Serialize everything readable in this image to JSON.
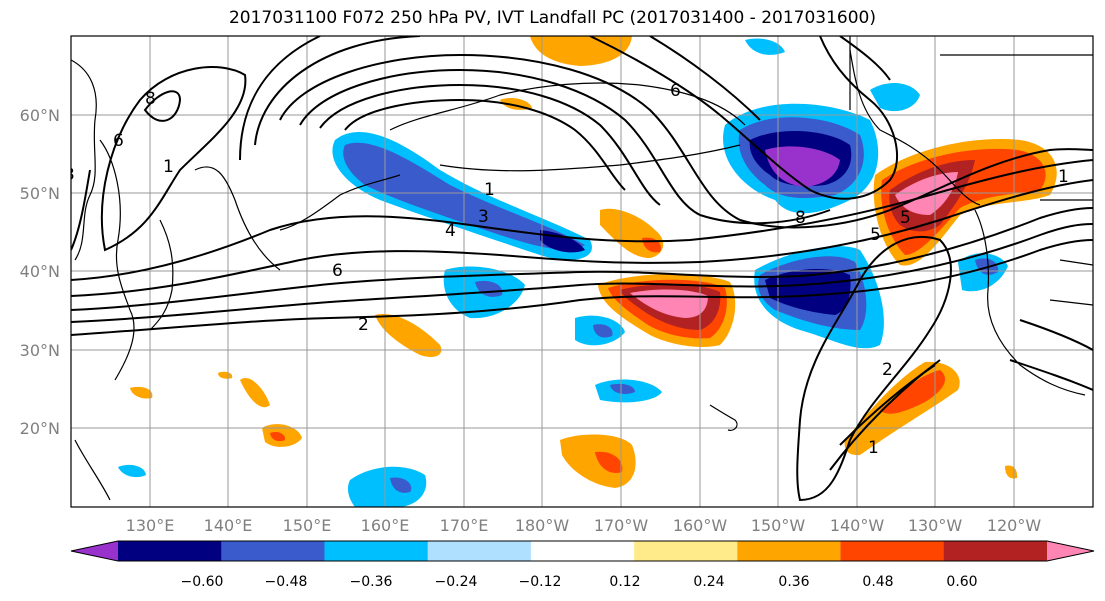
{
  "title": "2017031100 F072 250 hPa PV, IVT Landfall PC (2017031400 - 2017031600)",
  "lat_ticks": [
    "60°N",
    "50°N",
    "40°N",
    "30°N",
    "20°N"
  ],
  "lon_ticks": [
    "130°E",
    "140°E",
    "150°E",
    "160°E",
    "170°E",
    "180°W",
    "170°W",
    "160°W",
    "150°W",
    "140°W",
    "130°W",
    "120°W"
  ],
  "colorbar": {
    "colors": [
      "#9932cc",
      "#000080",
      "#3a5bcc",
      "#00bfff",
      "#b0e0ff",
      "#ffffff",
      "#ffeb8a",
      "#ffa500",
      "#ff4500",
      "#b22222",
      "#ff85b4"
    ],
    "tick_labels": [
      "−0.60",
      "−0.48",
      "−0.36",
      "−0.24",
      "−0.12",
      "0.12",
      "0.24",
      "0.36",
      "0.48",
      "0.60"
    ]
  },
  "contour_labels": [
    "8",
    "6",
    "1",
    "3",
    "4",
    "6",
    "2",
    "1",
    "3",
    "5",
    "8",
    "6",
    "2",
    "1",
    "5",
    "1"
  ],
  "colors": {
    "contour": "#000000",
    "coast": "#000000",
    "grid": "#808080"
  }
}
